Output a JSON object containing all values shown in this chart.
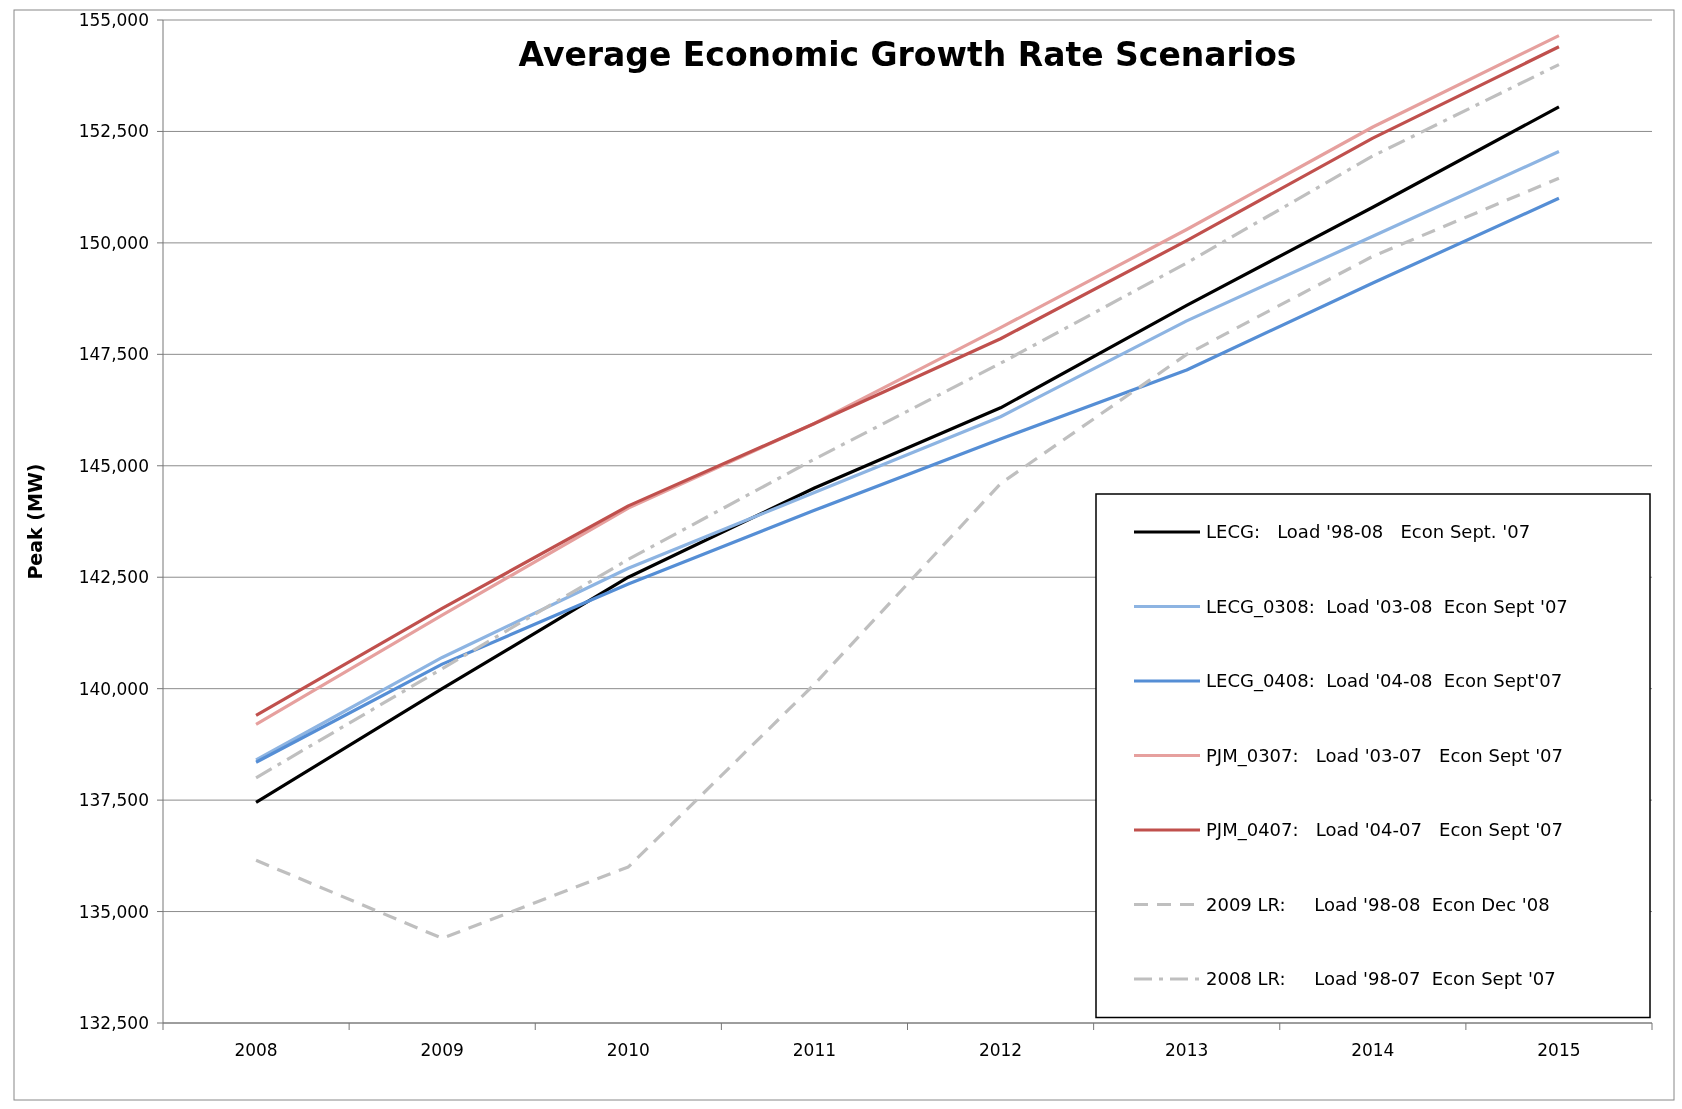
{
  "chart_data": {
    "type": "line",
    "title": "Average Economic Growth Rate Scenarios",
    "ylabel": "Peak (MW)",
    "categories": [
      "2008",
      "2009",
      "2010",
      "2011",
      "2012",
      "2013",
      "2014",
      "2015"
    ],
    "ylim": [
      132500,
      155000
    ],
    "yticks": [
      {
        "value": 132500,
        "label": "132,500"
      },
      {
        "value": 135000,
        "label": "135,000"
      },
      {
        "value": 137500,
        "label": "137,500"
      },
      {
        "value": 140000,
        "label": "140,000"
      },
      {
        "value": 142500,
        "label": "142,500"
      },
      {
        "value": 145000,
        "label": "145,000"
      },
      {
        "value": 147500,
        "label": "147,500"
      },
      {
        "value": 150000,
        "label": "150,000"
      },
      {
        "value": 152500,
        "label": "152,500"
      },
      {
        "value": 155000,
        "label": "155,000"
      }
    ],
    "grid": "y",
    "legend": "right",
    "marker": "none",
    "series": [
      {
        "name": "LECG:   Load '98-08   Econ Sept. '07",
        "color": "#000000",
        "line_style": "solid",
        "values": [
          137450,
          140000,
          142500,
          144500,
          146300,
          148600,
          150800,
          153050
        ]
      },
      {
        "name": "LECG_0308:  Load '03-08  Econ Sept '07",
        "color": "#8db4e2",
        "line_style": "solid",
        "values": [
          138400,
          140700,
          142700,
          144400,
          146100,
          148250,
          150150,
          152050
        ]
      },
      {
        "name": "LECG_0408:  Load '04-08  Econ Sept'07",
        "color": "#558ed5",
        "line_style": "solid",
        "values": [
          138350,
          140550,
          142350,
          144000,
          145600,
          147150,
          149100,
          151000
        ]
      },
      {
        "name": "PJM_0307:   Load '03-07   Econ Sept '07",
        "color": "#e6a09e",
        "line_style": "solid",
        "values": [
          139200,
          141650,
          144050,
          145950,
          148100,
          150300,
          152600,
          154650
        ]
      },
      {
        "name": "PJM_0407:   Load '04-07   Econ Sept '07",
        "color": "#c0504d",
        "line_style": "solid",
        "values": [
          139400,
          141800,
          144100,
          145950,
          147850,
          150050,
          152350,
          154400
        ]
      },
      {
        "name": "2009 LR:     Load '98-08  Econ Dec '08",
        "color": "#bfbfbf",
        "line_style": "dashed",
        "values": [
          136150,
          134400,
          136000,
          140100,
          144600,
          147500,
          149700,
          151450
        ]
      },
      {
        "name": "2008 LR:     Load '98-07  Econ Sept '07",
        "color": "#bfbfbf",
        "line_style": "dashdot",
        "values": [
          138000,
          140450,
          142900,
          145150,
          147300,
          149550,
          151950,
          154000
        ]
      }
    ]
  }
}
